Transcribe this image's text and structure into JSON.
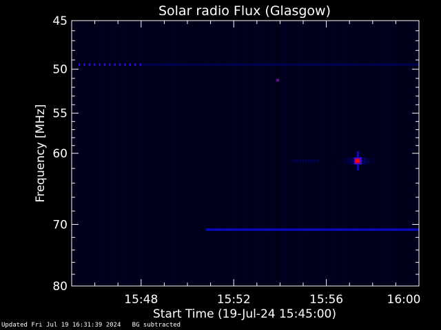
{
  "chart_data": {
    "type": "heatmap",
    "title": "Solar radio Flux (Glasgow)",
    "xlabel": "Start Time (19-Jul-24 15:45:00)",
    "ylabel": "Frequency [MHz]",
    "x_range_minutes": [
      0,
      15
    ],
    "x_ticks": [
      {
        "minute": 3,
        "label": "15:48"
      },
      {
        "minute": 7,
        "label": "15:52"
      },
      {
        "minute": 11,
        "label": "15:56"
      },
      {
        "minute": 15,
        "label": "16:00"
      }
    ],
    "y_scale": "log",
    "y_range_mhz": [
      45,
      80
    ],
    "y_ticks": [
      45,
      50,
      55,
      60,
      70,
      80
    ],
    "colormap": [
      "#000000",
      "#000060",
      "#1010ff",
      "#ff0000"
    ],
    "features": [
      {
        "kind": "dotted-line",
        "freq": 49.5,
        "from_min": 0.3,
        "to_min": 3.0,
        "intensity": 0.7
      },
      {
        "kind": "faint-line",
        "freq": 49.5,
        "from_min": 3.0,
        "to_min": 15,
        "intensity": 0.25
      },
      {
        "kind": "dot",
        "freq": 51.2,
        "minute": 8.9,
        "intensity": 0.8
      },
      {
        "kind": "line",
        "freq": 70.8,
        "from_min": 5.8,
        "to_min": 15,
        "intensity": 0.45
      },
      {
        "kind": "band",
        "freq": 61.0,
        "from_min": 9.5,
        "to_min": 10.6,
        "intensity": 0.35
      },
      {
        "kind": "burst",
        "freq": 61.0,
        "from_min": 11.3,
        "to_min": 13.1,
        "peak_min": 12.35,
        "intensity": 1.0
      }
    ]
  },
  "footer": {
    "updated": "Updated Fri Jul 19 16:31:39 2024",
    "note": "BG subtracted"
  }
}
